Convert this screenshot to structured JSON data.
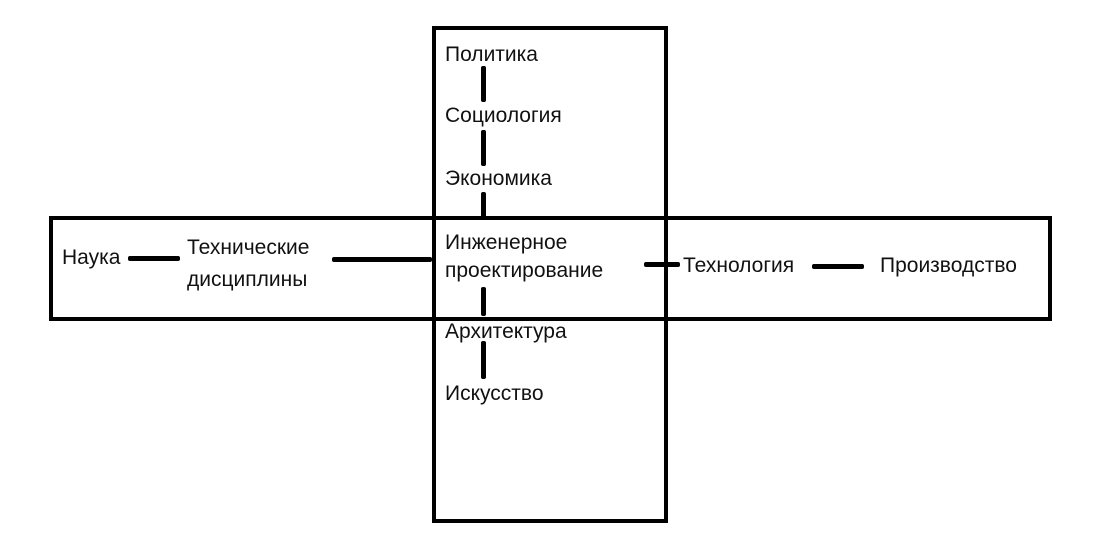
{
  "nodes": {
    "politics": "Политика",
    "sociology": "Социология",
    "economics": "Экономика",
    "engineering_line1": "Инженерное",
    "engineering_line2": "проектирование",
    "architecture": "Архитектура",
    "art": "Искусство",
    "science": "Наука",
    "tech_disciplines_line1": "Технические",
    "tech_disciplines_line2": "дисциплины",
    "technology": "Технология",
    "production": "Производство"
  },
  "colors": {
    "line": "#000000",
    "text": "#111111",
    "background": "#ffffff"
  }
}
